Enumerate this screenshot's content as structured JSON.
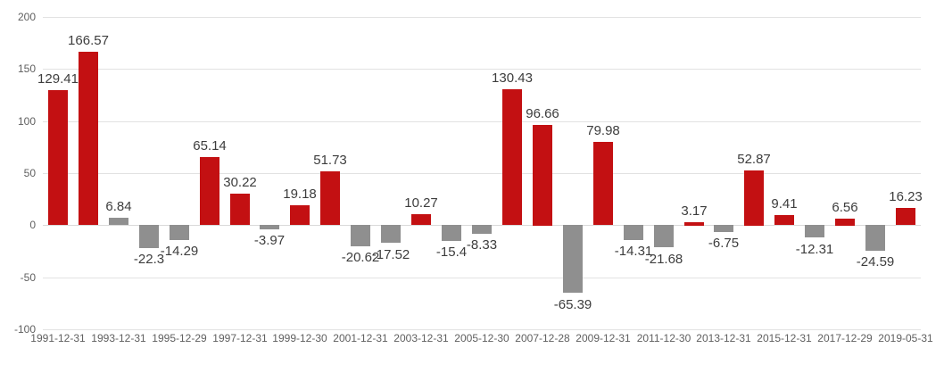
{
  "chart_data": {
    "type": "bar",
    "title": "",
    "xlabel": "",
    "ylabel": "",
    "ylim": [
      -100,
      200
    ],
    "y_ticks": [
      200,
      150,
      100,
      50,
      0,
      -50,
      -100
    ],
    "grid": true,
    "legend": "none",
    "colors": {
      "red": "#c31012",
      "gray": "#8f8f8f"
    },
    "x_tick_labels": [
      "1991-12-31",
      "1993-12-31",
      "1995-12-29",
      "1997-12-31",
      "1999-12-30",
      "2001-12-31",
      "2003-12-31",
      "2005-12-30",
      "2007-12-28",
      "2009-12-31",
      "2011-12-30",
      "2013-12-31",
      "2015-12-31",
      "2017-12-29",
      "2019-05-31"
    ],
    "bars": [
      {
        "label": "129.41",
        "value": 129.41,
        "color": "red"
      },
      {
        "label": "166.57",
        "value": 166.57,
        "color": "red"
      },
      {
        "label": "6.84",
        "value": 6.84,
        "color": "gray"
      },
      {
        "label": "-22.3",
        "value": -22.3,
        "color": "gray"
      },
      {
        "label": "-14.29",
        "value": -14.29,
        "color": "gray"
      },
      {
        "label": "65.14",
        "value": 65.14,
        "color": "red"
      },
      {
        "label": "30.22",
        "value": 30.22,
        "color": "red"
      },
      {
        "label": "-3.97",
        "value": -3.97,
        "color": "gray"
      },
      {
        "label": "19.18",
        "value": 19.18,
        "color": "red"
      },
      {
        "label": "51.73",
        "value": 51.73,
        "color": "red"
      },
      {
        "label": "-20.62",
        "value": -20.62,
        "color": "gray"
      },
      {
        "label": "-17.52",
        "value": -17.52,
        "color": "gray"
      },
      {
        "label": "10.27",
        "value": 10.27,
        "color": "red"
      },
      {
        "label": "-15.4",
        "value": -15.4,
        "color": "gray"
      },
      {
        "label": "-8.33",
        "value": -8.33,
        "color": "gray"
      },
      {
        "label": "130.43",
        "value": 130.43,
        "color": "red"
      },
      {
        "label": "96.66",
        "value": 96.66,
        "color": "red"
      },
      {
        "label": "-65.39",
        "value": -65.39,
        "color": "gray"
      },
      {
        "label": "79.98",
        "value": 79.98,
        "color": "red"
      },
      {
        "label": "-14.31",
        "value": -14.31,
        "color": "gray"
      },
      {
        "label": "-21.68",
        "value": -21.68,
        "color": "gray"
      },
      {
        "label": "3.17",
        "value": 3.17,
        "color": "red"
      },
      {
        "label": "-6.75",
        "value": -6.75,
        "color": "gray"
      },
      {
        "label": "52.87",
        "value": 52.87,
        "color": "red"
      },
      {
        "label": "9.41",
        "value": 9.41,
        "color": "red"
      },
      {
        "label": "-12.31",
        "value": -12.31,
        "color": "gray"
      },
      {
        "label": "6.56",
        "value": 6.56,
        "color": "red"
      },
      {
        "label": "-24.59",
        "value": -24.59,
        "color": "gray"
      },
      {
        "label": "16.23",
        "value": 16.23,
        "color": "red"
      }
    ]
  }
}
